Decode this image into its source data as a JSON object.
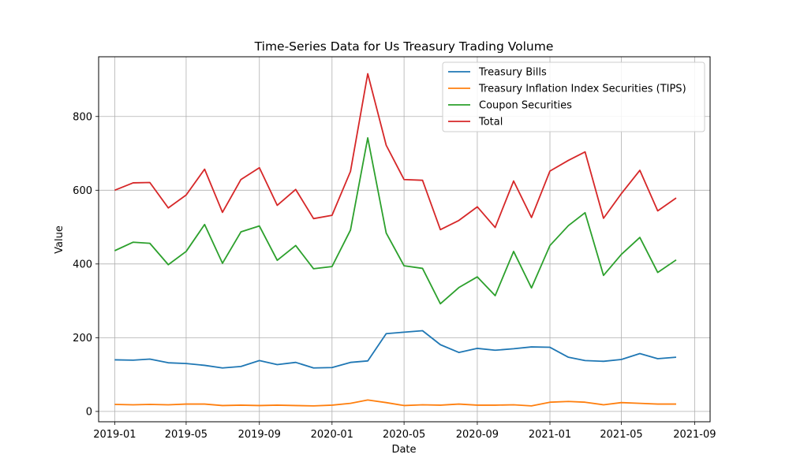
{
  "chart_data": {
    "type": "line",
    "title": "Time-Series Data for Us Treasury Trading Volume",
    "xlabel": "Date",
    "ylabel": "Value",
    "x": [
      "2019-01",
      "2019-02",
      "2019-03",
      "2019-04",
      "2019-05",
      "2019-06",
      "2019-07",
      "2019-08",
      "2019-09",
      "2019-10",
      "2019-11",
      "2019-12",
      "2020-01",
      "2020-02",
      "2020-03",
      "2020-04",
      "2020-05",
      "2020-06",
      "2020-07",
      "2020-08",
      "2020-09",
      "2020-10",
      "2020-11",
      "2020-12",
      "2021-01",
      "2021-02",
      "2021-03",
      "2021-04",
      "2021-05",
      "2021-06",
      "2021-07",
      "2021-08"
    ],
    "x_ticks": [
      "2019-01",
      "2019-05",
      "2019-09",
      "2020-01",
      "2020-05",
      "2020-09",
      "2021-01",
      "2021-05",
      "2021-09"
    ],
    "x_range": [
      "2018-12-05",
      "2021-09-27"
    ],
    "ylim": [
      -28,
      962
    ],
    "y_ticks": [
      0,
      200,
      400,
      600,
      800
    ],
    "grid": true,
    "legend_position": "top-right",
    "series": [
      {
        "name": "Treasury Bills",
        "color": "#1f77b4",
        "values": [
          140,
          139,
          142,
          132,
          130,
          125,
          118,
          122,
          138,
          127,
          133,
          118,
          119,
          133,
          137,
          211,
          215,
          219,
          181,
          160,
          171,
          166,
          170,
          175,
          174,
          147,
          138,
          136,
          141,
          157,
          143,
          147
        ]
      },
      {
        "name": "Treasury Inflation Index Securities (TIPS)",
        "color": "#ff7f0e",
        "values": [
          19,
          18,
          19,
          18,
          20,
          20,
          16,
          17,
          16,
          17,
          16,
          15,
          17,
          22,
          31,
          24,
          16,
          18,
          17,
          20,
          17,
          17,
          18,
          15,
          25,
          27,
          25,
          18,
          24,
          22,
          20,
          20
        ]
      },
      {
        "name": "Coupon Securities",
        "color": "#2ca02c",
        "values": [
          436,
          459,
          456,
          398,
          434,
          507,
          402,
          487,
          503,
          410,
          450,
          387,
          393,
          492,
          742,
          484,
          395,
          388,
          292,
          336,
          365,
          314,
          434,
          335,
          450,
          504,
          539,
          369,
          426,
          472,
          377,
          411
        ]
      },
      {
        "name": "Total",
        "color": "#d62728",
        "values": [
          600,
          620,
          621,
          552,
          587,
          657,
          540,
          629,
          661,
          559,
          602,
          523,
          532,
          651,
          916,
          722,
          629,
          627,
          493,
          518,
          555,
          499,
          625,
          526,
          652,
          681,
          704,
          524,
          591,
          654,
          544,
          579
        ]
      }
    ]
  }
}
